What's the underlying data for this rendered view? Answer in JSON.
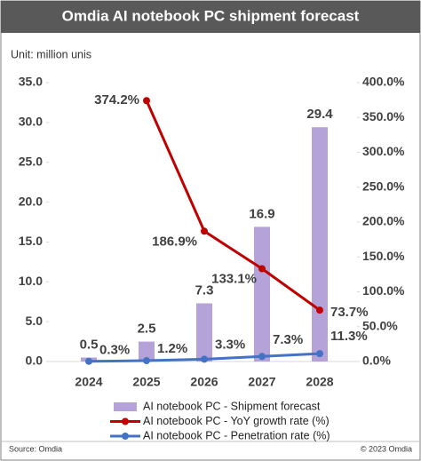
{
  "chart_data": {
    "type": "combo",
    "title": "Omdia AI notebook PC shipment forecast",
    "subtitle": "Unit: million unis",
    "categories": [
      "2024",
      "2025",
      "2026",
      "2027",
      "2028"
    ],
    "series": [
      {
        "name": "AI notebook PC - Shipment forecast",
        "type": "bar",
        "color": "#b4a2d8",
        "values": [
          0.5,
          2.5,
          7.3,
          16.9,
          29.4
        ]
      },
      {
        "name": "AI notebook PC - YoY growth rate (%)",
        "type": "line",
        "axis": "y2",
        "color": "#c00000",
        "values": [
          null,
          374.2,
          186.9,
          133.1,
          73.7
        ],
        "value_labels": [
          null,
          "374.2%",
          "186.9%",
          "133.1%",
          "73.7%"
        ]
      },
      {
        "name": "AI notebook PC - Penetration rate (%)",
        "type": "line",
        "axis": "y2",
        "color": "#4472c4",
        "values": [
          0.3,
          1.2,
          3.3,
          7.3,
          11.3
        ],
        "value_labels": [
          "0.3%",
          "1.2%",
          "3.3%",
          "7.3%",
          "11.3%"
        ]
      }
    ],
    "ylim": [
      0,
      35
    ],
    "yticks": [
      {
        "value": 0,
        "label": "0.0"
      },
      {
        "value": 5,
        "label": "5.0"
      },
      {
        "value": 10,
        "label": "10.0"
      },
      {
        "value": 15,
        "label": "15.0"
      },
      {
        "value": 20,
        "label": "20.0"
      },
      {
        "value": 25,
        "label": "25.0"
      },
      {
        "value": 30,
        "label": "30.0"
      },
      {
        "value": 35,
        "label": "35.0"
      }
    ],
    "y2lim": [
      0,
      400
    ],
    "y2ticks": [
      {
        "value": 0,
        "label": "0.0%"
      },
      {
        "value": 50,
        "label": "50.0%"
      },
      {
        "value": 100,
        "label": "100.0%"
      },
      {
        "value": 150,
        "label": "150.0%"
      },
      {
        "value": 200,
        "label": "200.0%"
      },
      {
        "value": 250,
        "label": "250.0%"
      },
      {
        "value": 300,
        "label": "300.0%"
      },
      {
        "value": 350,
        "label": "350.0%"
      },
      {
        "value": 400,
        "label": "400.0%"
      }
    ],
    "source": "Source: Omdia",
    "copyright": "© 2023 Omdia"
  }
}
